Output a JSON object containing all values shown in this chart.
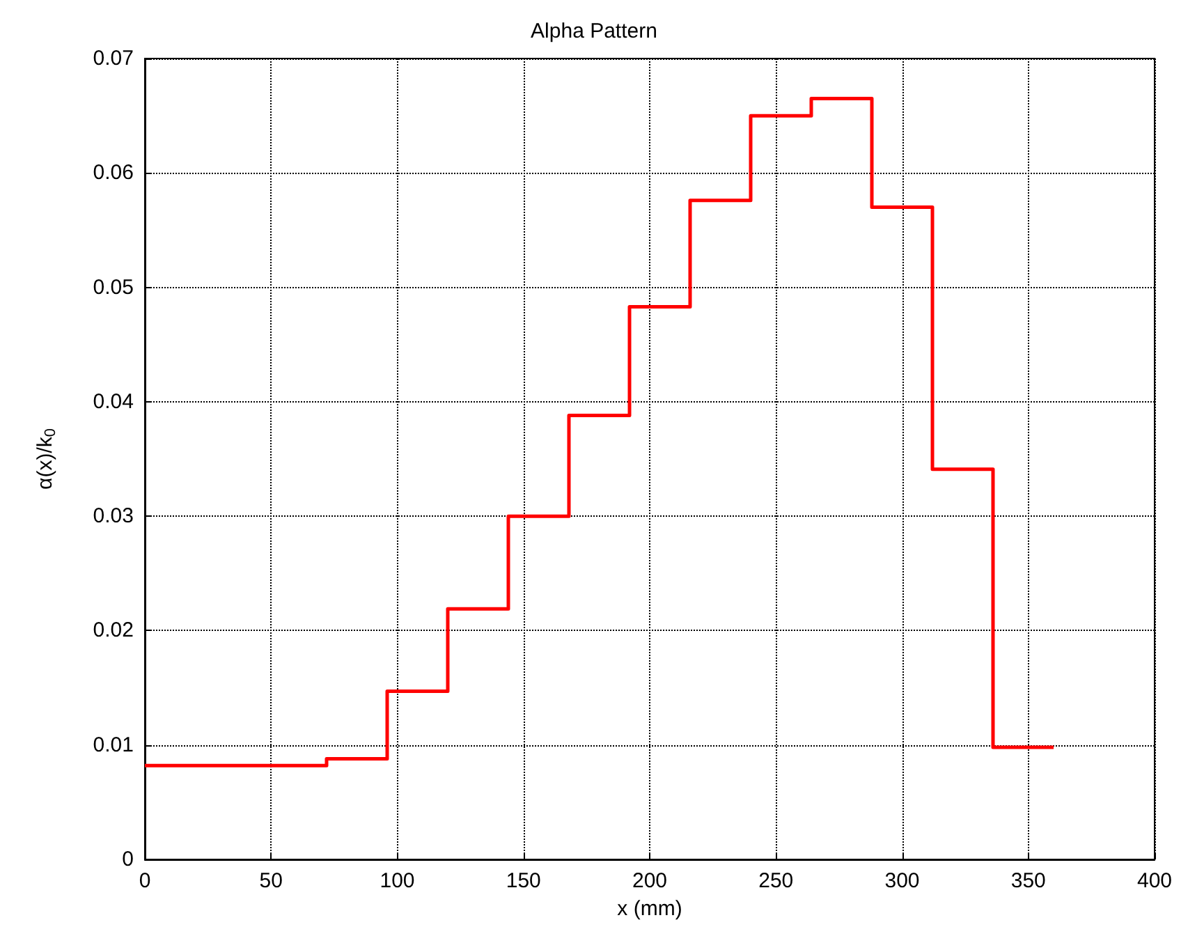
{
  "chart_data": {
    "type": "step",
    "title": "Alpha Pattern",
    "xlabel": "x (mm)",
    "ylabel": "α(x)/k$_{0}$",
    "x": [
      0,
      72,
      96,
      120,
      144,
      168,
      192,
      216,
      240,
      264,
      288,
      312,
      336,
      360
    ],
    "series": [
      {
        "color": "#ff0000",
        "values": [
          0.0082,
          0.0088,
          0.0147,
          0.0219,
          0.03,
          0.0388,
          0.0483,
          0.0576,
          0.065,
          0.0665,
          0.057,
          0.0341,
          0.0098,
          0.0098
        ]
      }
    ],
    "xlim": [
      0,
      400
    ],
    "xticks": [
      0,
      50,
      100,
      150,
      200,
      250,
      300,
      350,
      400
    ],
    "ylim": [
      0,
      0.07
    ],
    "yticks": [
      0,
      0.01,
      0.02,
      0.03,
      0.04,
      0.05,
      0.06,
      0.07
    ],
    "grid": true,
    "line_style": "solid",
    "marker": "none"
  }
}
